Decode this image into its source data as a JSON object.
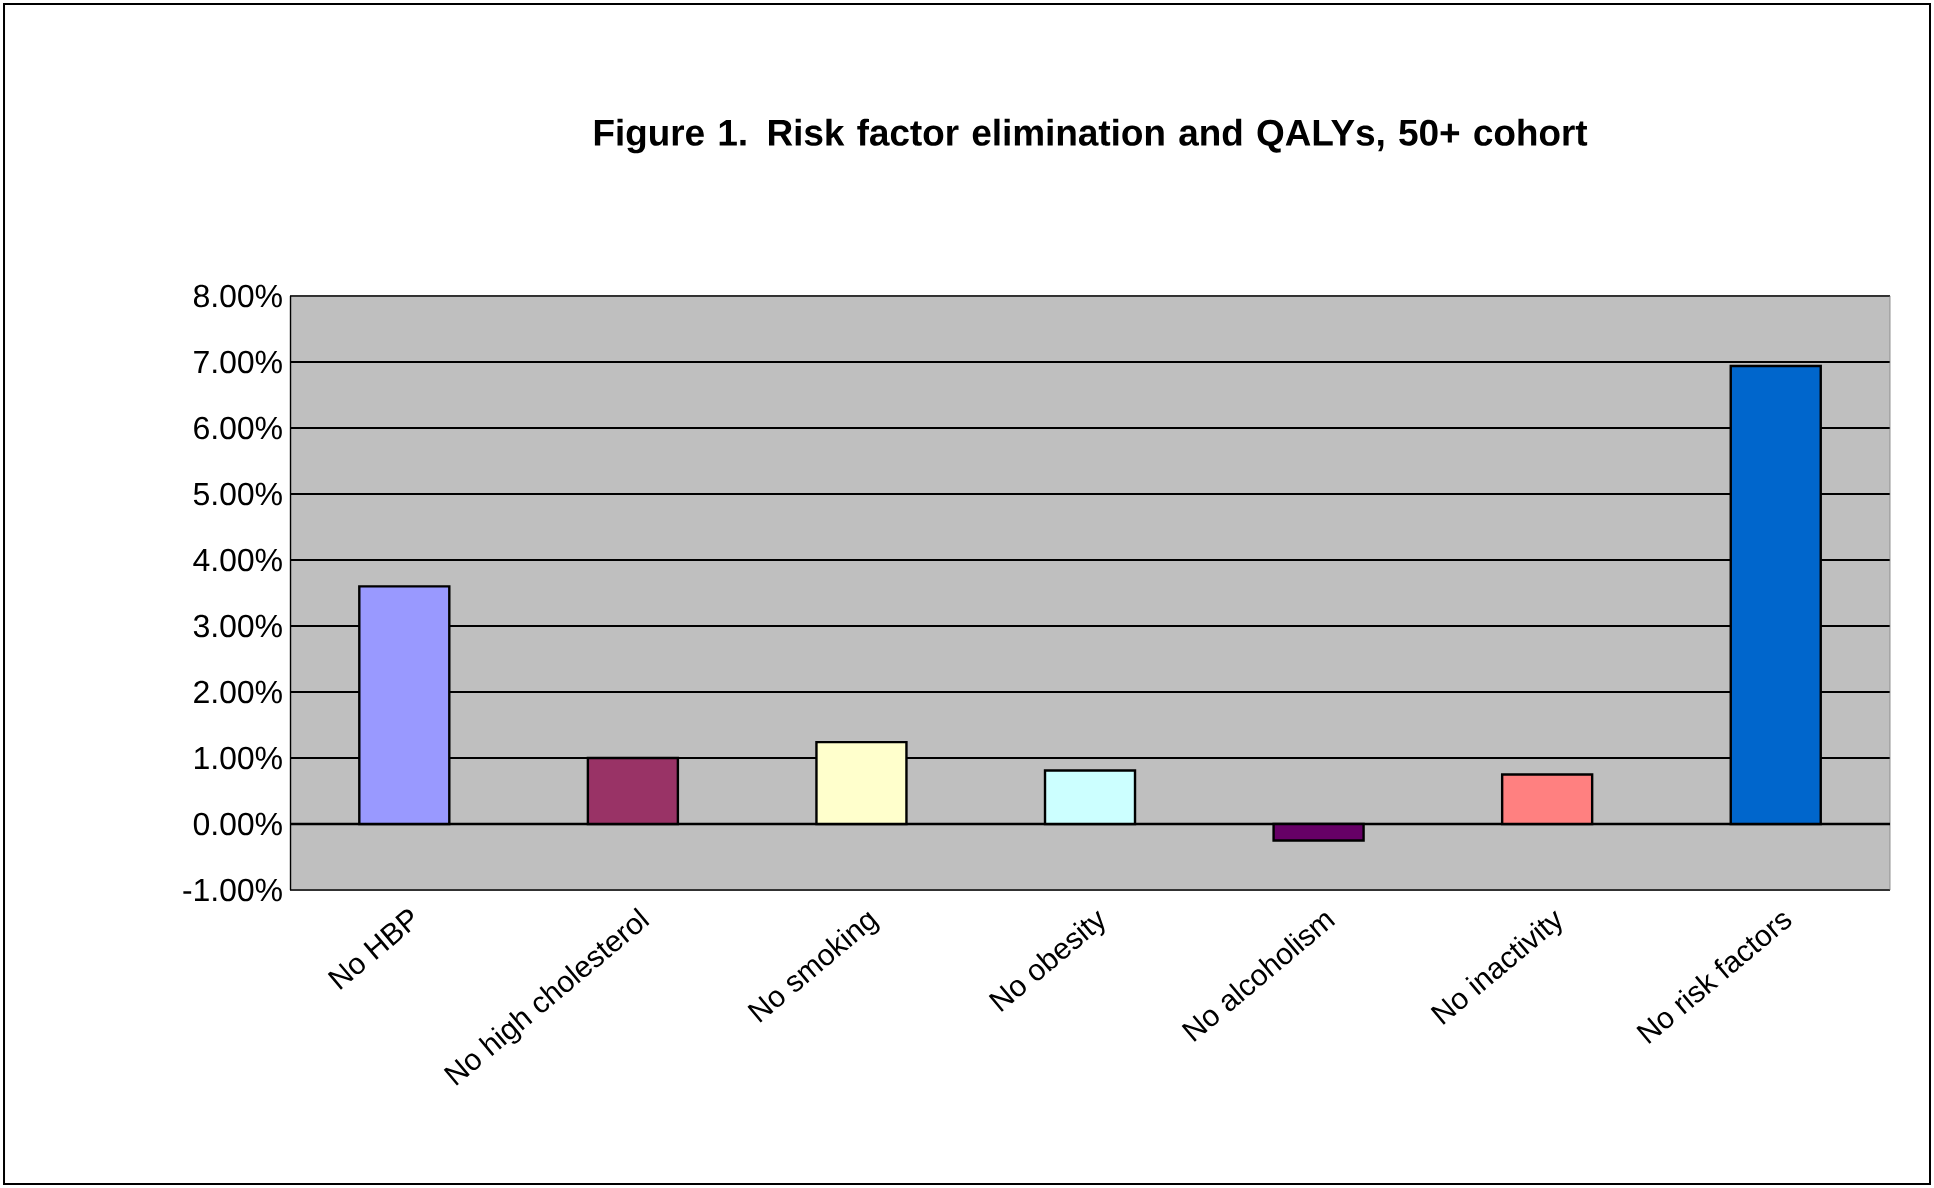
{
  "chart_data": {
    "type": "bar",
    "title": "Figure 1. Risk factor elimination and QALYs, 50+ cohort",
    "categories": [
      "No HBP",
      "No high cholesterol",
      "No smoking",
      "No obesity",
      "No alcoholism",
      "No inactivity",
      "No risk factors"
    ],
    "values": [
      3.6,
      1.0,
      1.24,
      0.81,
      -0.25,
      0.75,
      6.94
    ],
    "colors": [
      "#9999ff",
      "#993366",
      "#ffffcc",
      "#ccffff",
      "#660066",
      "#ff8080",
      "#0066cc"
    ],
    "ylim": [
      -1,
      8
    ],
    "yticks": [
      {
        "value": -1,
        "label": "-1.00%"
      },
      {
        "value": 0,
        "label": "0.00%"
      },
      {
        "value": 1,
        "label": "1.00%"
      },
      {
        "value": 2,
        "label": "2.00%"
      },
      {
        "value": 3,
        "label": "3.00%"
      },
      {
        "value": 4,
        "label": "4.00%"
      },
      {
        "value": 5,
        "label": "5.00%"
      },
      {
        "value": 6,
        "label": "6.00%"
      },
      {
        "value": 7,
        "label": "7.00%"
      },
      {
        "value": 8,
        "label": "8.00%"
      }
    ],
    "grid": "y"
  }
}
